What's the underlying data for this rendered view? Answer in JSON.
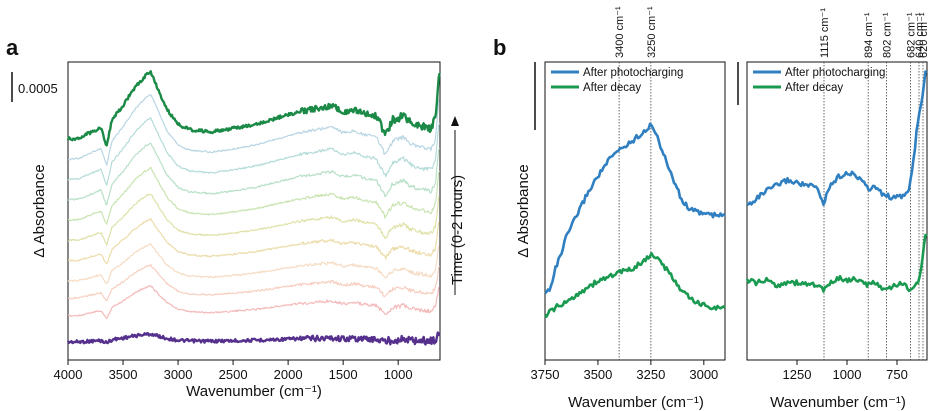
{
  "panels": {
    "a": "a",
    "b": "b"
  },
  "scale_bar_label": "0.0005",
  "time_label": "Time (0-2 hours)",
  "chart_data": [
    {
      "id": "panel-a",
      "type": "line",
      "xlabel": "Wavenumber (cm⁻¹)",
      "ylabel": "Δ Absorbance",
      "xlim": [
        4000,
        620
      ],
      "x_reversed": true,
      "xticks": [
        4000,
        3500,
        3000,
        2500,
        2000,
        1500,
        1000
      ],
      "yticks_shown": false,
      "grid": false,
      "series": [
        {
          "color": "#55308d",
          "offset": 0.0,
          "scale": 0.12,
          "width": 2.4
        },
        {
          "color": "#f4b9b9",
          "offset": 0.9,
          "scale": 0.45,
          "width": 1.2
        },
        {
          "color": "#f7cfc0",
          "offset": 1.5,
          "scale": 0.5,
          "width": 1.2
        },
        {
          "color": "#f6dcc4",
          "offset": 2.1,
          "scale": 0.55,
          "width": 1.2
        },
        {
          "color": "#ecdcaa",
          "offset": 2.8,
          "scale": 0.62,
          "width": 1.2
        },
        {
          "color": "#dfe2a8",
          "offset": 3.5,
          "scale": 0.7,
          "width": 1.2
        },
        {
          "color": "#c9e4b2",
          "offset": 4.2,
          "scale": 0.78,
          "width": 1.2
        },
        {
          "color": "#b8e0c8",
          "offset": 4.9,
          "scale": 0.85,
          "width": 1.2
        },
        {
          "color": "#b4dcd9",
          "offset": 5.6,
          "scale": 0.92,
          "width": 1.2
        },
        {
          "color": "#b9d6e3",
          "offset": 6.3,
          "scale": 0.97,
          "width": 1.2
        },
        {
          "color": "#1a8a46",
          "offset": 7.0,
          "scale": 1.0,
          "width": 2.4
        }
      ],
      "y_offset_units": 29.0,
      "shape": [
        [
          4000,
          0.0
        ],
        [
          3900,
          0.05
        ],
        [
          3800,
          0.3
        ],
        [
          3700,
          0.55
        ],
        [
          3650,
          -0.3
        ],
        [
          3600,
          0.9
        ],
        [
          3500,
          1.6
        ],
        [
          3400,
          2.4
        ],
        [
          3300,
          3.0
        ],
        [
          3250,
          3.2
        ],
        [
          3200,
          2.6
        ],
        [
          3100,
          1.4
        ],
        [
          3000,
          0.7
        ],
        [
          2900,
          0.45
        ],
        [
          2700,
          0.35
        ],
        [
          2500,
          0.5
        ],
        [
          2300,
          0.7
        ],
        [
          2100,
          1.0
        ],
        [
          1900,
          1.3
        ],
        [
          1700,
          1.5
        ],
        [
          1600,
          1.6
        ],
        [
          1500,
          1.3
        ],
        [
          1400,
          1.4
        ],
        [
          1300,
          1.2
        ],
        [
          1200,
          1.1
        ],
        [
          1115,
          0.2
        ],
        [
          1050,
          0.9
        ],
        [
          950,
          1.1
        ],
        [
          894,
          0.8
        ],
        [
          802,
          0.6
        ],
        [
          700,
          0.5
        ],
        [
          660,
          1.0
        ],
        [
          630,
          3.0
        ]
      ]
    },
    {
      "id": "panel-b-left",
      "type": "line",
      "xlabel": "Wavenumber (cm⁻¹)",
      "ylabel": "Δ Absorbance",
      "xlim": [
        3750,
        2900
      ],
      "x_reversed": true,
      "xticks": [
        3750,
        3500,
        3250,
        3000
      ],
      "yticks_shown": false,
      "grid": false,
      "reference_lines": [
        {
          "x": 3400,
          "label": "3400 cm⁻¹"
        },
        {
          "x": 3250,
          "label": "3250 cm⁻¹"
        }
      ],
      "series": [
        {
          "name": "After photocharging",
          "color": "#2f7fc1",
          "points": [
            [
              3750,
              0.3
            ],
            [
              3725,
              0.45
            ],
            [
              3700,
              0.9
            ],
            [
              3675,
              1.2
            ],
            [
              3650,
              1.6
            ],
            [
              3600,
              2.1
            ],
            [
              3550,
              2.6
            ],
            [
              3500,
              3.0
            ],
            [
              3450,
              3.35
            ],
            [
              3400,
              3.6
            ],
            [
              3350,
              3.75
            ],
            [
              3300,
              3.95
            ],
            [
              3250,
              4.15
            ],
            [
              3225,
              4.0
            ],
            [
              3200,
              3.6
            ],
            [
              3150,
              3.0
            ],
            [
              3100,
              2.4
            ],
            [
              3050,
              2.2
            ],
            [
              3000,
              2.15
            ],
            [
              2950,
              2.1
            ],
            [
              2900,
              2.1
            ]
          ]
        },
        {
          "name": "After decay",
          "color": "#1a9a50",
          "points": [
            [
              3750,
              -0.2
            ],
            [
              3725,
              -0.1
            ],
            [
              3700,
              0.0
            ],
            [
              3675,
              0.05
            ],
            [
              3650,
              0.1
            ],
            [
              3600,
              0.3
            ],
            [
              3550,
              0.45
            ],
            [
              3500,
              0.6
            ],
            [
              3450,
              0.7
            ],
            [
              3400,
              0.8
            ],
            [
              3350,
              0.85
            ],
            [
              3300,
              1.0
            ],
            [
              3250,
              1.2
            ],
            [
              3225,
              1.15
            ],
            [
              3200,
              1.0
            ],
            [
              3150,
              0.7
            ],
            [
              3100,
              0.35
            ],
            [
              3050,
              0.15
            ],
            [
              3000,
              0.05
            ],
            [
              2950,
              0.0
            ],
            [
              2900,
              -0.02
            ]
          ]
        }
      ]
    },
    {
      "id": "panel-b-right",
      "type": "line",
      "xlabel": "Wavenumber (cm⁻¹)",
      "xlim": [
        1500,
        600
      ],
      "x_reversed": true,
      "xticks": [
        1250,
        1000,
        750
      ],
      "yticks_shown": false,
      "grid": false,
      "reference_lines": [
        {
          "x": 1115,
          "label": "1115 cm⁻¹"
        },
        {
          "x": 894,
          "label": "894 cm⁻¹"
        },
        {
          "x": 802,
          "label": "802 cm⁻¹"
        },
        {
          "x": 682,
          "label": "682 cm⁻¹"
        },
        {
          "x": 640,
          "label": "640 cm⁻¹"
        },
        {
          "x": 620,
          "label": "620 cm⁻¹"
        }
      ],
      "series": [
        {
          "name": "After photocharging",
          "color": "#2f7fc1",
          "points": [
            [
              1500,
              2.4
            ],
            [
              1450,
              2.55
            ],
            [
              1400,
              2.7
            ],
            [
              1350,
              2.8
            ],
            [
              1300,
              2.9
            ],
            [
              1250,
              2.85
            ],
            [
              1200,
              2.8
            ],
            [
              1150,
              2.75
            ],
            [
              1115,
              2.4
            ],
            [
              1100,
              2.7
            ],
            [
              1050,
              2.95
            ],
            [
              1000,
              3.05
            ],
            [
              960,
              3.0
            ],
            [
              920,
              2.9
            ],
            [
              894,
              2.7
            ],
            [
              860,
              2.8
            ],
            [
              830,
              2.65
            ],
            [
              802,
              2.6
            ],
            [
              760,
              2.55
            ],
            [
              720,
              2.6
            ],
            [
              690,
              2.7
            ],
            [
              670,
              3.2
            ],
            [
              650,
              3.9
            ],
            [
              635,
              4.3
            ],
            [
              622,
              4.5
            ],
            [
              610,
              5.0
            ]
          ]
        },
        {
          "name": "After decay",
          "color": "#1a9a50",
          "points": [
            [
              1500,
              0.95
            ],
            [
              1450,
              0.9
            ],
            [
              1400,
              0.95
            ],
            [
              1350,
              0.85
            ],
            [
              1300,
              0.92
            ],
            [
              1250,
              0.9
            ],
            [
              1200,
              0.88
            ],
            [
              1150,
              0.86
            ],
            [
              1115,
              0.75
            ],
            [
              1100,
              0.82
            ],
            [
              1050,
              1.0
            ],
            [
              1000,
              0.95
            ],
            [
              960,
              0.98
            ],
            [
              920,
              0.9
            ],
            [
              894,
              0.85
            ],
            [
              860,
              0.92
            ],
            [
              830,
              0.82
            ],
            [
              802,
              0.75
            ],
            [
              760,
              0.85
            ],
            [
              720,
              0.9
            ],
            [
              690,
              0.75
            ],
            [
              670,
              0.85
            ],
            [
              650,
              0.9
            ],
            [
              635,
              1.0
            ],
            [
              622,
              1.4
            ],
            [
              610,
              1.8
            ]
          ]
        }
      ]
    }
  ]
}
